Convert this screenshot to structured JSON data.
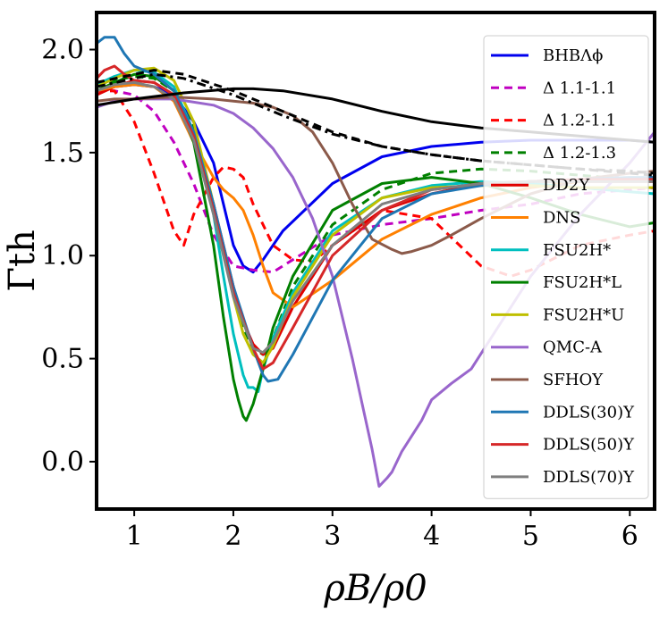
{
  "chart_data": {
    "type": "line",
    "title": "",
    "xlabel": "ρB/ρ0",
    "ylabel": "Γth",
    "xlim": [
      0.62,
      6.25
    ],
    "ylim": [
      -0.23,
      2.18
    ],
    "xticks": [
      "1",
      "2",
      "3",
      "4",
      "5",
      "6"
    ],
    "xtick_values": [
      1,
      2,
      3,
      4,
      5,
      6
    ],
    "yticks": [
      "0.0",
      "0.5",
      "1.0",
      "1.5",
      "2.0"
    ],
    "ytick_values": [
      0.0,
      0.5,
      1.0,
      1.5,
      2.0
    ],
    "grid": false,
    "legend_position": "right",
    "series": [
      {
        "name": "BHBΛϕ",
        "color": "#0000ee",
        "dash": "solid",
        "x": [
          0.62,
          0.8,
          1.0,
          1.2,
          1.4,
          1.6,
          1.8,
          1.9,
          2.0,
          2.1,
          2.2,
          2.3,
          2.5,
          3.0,
          3.5,
          4.0,
          4.5,
          5.0,
          5.5,
          6.0,
          6.25
        ],
        "y": [
          1.8,
          1.82,
          1.83,
          1.82,
          1.78,
          1.65,
          1.45,
          1.25,
          1.05,
          0.95,
          0.92,
          0.98,
          1.12,
          1.35,
          1.48,
          1.53,
          1.55,
          1.56,
          1.56,
          1.56,
          1.55
        ]
      },
      {
        "name": "Δ 1.1-1.1",
        "color": "#c000c0",
        "dash": "dashed",
        "x": [
          0.62,
          0.8,
          1.0,
          1.2,
          1.4,
          1.6,
          1.8,
          2.0,
          2.2,
          2.4,
          2.6,
          3.0,
          3.5,
          4.0,
          4.5,
          5.0,
          5.5,
          6.0,
          6.25
        ],
        "y": [
          1.8,
          1.8,
          1.78,
          1.7,
          1.55,
          1.35,
          1.1,
          0.95,
          0.93,
          0.92,
          0.98,
          1.1,
          1.15,
          1.18,
          1.22,
          1.25,
          1.3,
          1.32,
          1.33
        ]
      },
      {
        "name": "Δ 1.2-1.1",
        "color": "#ff0000",
        "dash": "dashed",
        "x": [
          0.62,
          0.8,
          1.0,
          1.2,
          1.4,
          1.5,
          1.6,
          1.8,
          1.9,
          2.0,
          2.1,
          2.2,
          2.4,
          2.6,
          2.8,
          3.0,
          3.5,
          4.0,
          4.5,
          4.8,
          5.0,
          5.5,
          6.0,
          6.25
        ],
        "y": [
          1.8,
          1.8,
          1.65,
          1.4,
          1.12,
          1.05,
          1.2,
          1.38,
          1.43,
          1.42,
          1.38,
          1.25,
          1.05,
          0.98,
          0.97,
          1.05,
          1.22,
          1.18,
          0.95,
          0.9,
          0.93,
          1.05,
          1.1,
          1.12
        ]
      },
      {
        "name": "Δ 1.2-1.3",
        "color": "#008000",
        "dash": "dashed",
        "x": [
          0.62,
          0.8,
          1.0,
          1.2,
          1.4,
          1.6,
          1.8,
          2.0,
          2.1,
          2.2,
          2.3,
          2.4,
          2.6,
          3.0,
          3.5,
          4.0,
          4.5,
          5.0,
          5.5,
          6.0,
          6.25
        ],
        "y": [
          1.82,
          1.85,
          1.87,
          1.86,
          1.8,
          1.62,
          1.25,
          0.82,
          0.65,
          0.55,
          0.52,
          0.6,
          0.85,
          1.15,
          1.32,
          1.4,
          1.42,
          1.41,
          1.39,
          1.37,
          1.36
        ]
      },
      {
        "name": "DD2Y",
        "color": "#e00000",
        "dash": "solid",
        "x": [
          0.62,
          0.8,
          1.0,
          1.2,
          1.4,
          1.6,
          1.8,
          2.0,
          2.1,
          2.2,
          2.3,
          2.4,
          2.6,
          3.0,
          3.5,
          4.0,
          4.5,
          5.0,
          5.5,
          6.0,
          6.25
        ],
        "y": [
          1.78,
          1.82,
          1.85,
          1.84,
          1.78,
          1.6,
          1.25,
          0.85,
          0.68,
          0.57,
          0.52,
          0.55,
          0.75,
          1.05,
          1.22,
          1.3,
          1.35,
          1.36,
          1.36,
          1.36,
          1.36
        ]
      },
      {
        "name": "DNS",
        "color": "#ff8000",
        "dash": "solid",
        "x": [
          0.62,
          0.8,
          1.0,
          1.2,
          1.4,
          1.6,
          1.8,
          1.9,
          2.0,
          2.1,
          2.2,
          2.3,
          2.4,
          2.6,
          3.0,
          3.5,
          4.0,
          4.5,
          5.0,
          5.5,
          6.0,
          6.25
        ],
        "y": [
          1.8,
          1.82,
          1.83,
          1.82,
          1.75,
          1.55,
          1.38,
          1.32,
          1.28,
          1.22,
          1.1,
          0.95,
          0.82,
          0.75,
          0.88,
          1.08,
          1.2,
          1.28,
          1.33,
          1.36,
          1.37,
          1.37
        ]
      },
      {
        "name": "FSU2H*",
        "color": "#00bfbf",
        "dash": "solid",
        "x": [
          0.62,
          0.8,
          1.0,
          1.2,
          1.4,
          1.6,
          1.8,
          1.9,
          2.0,
          2.1,
          2.15,
          2.2,
          2.25,
          2.3,
          2.4,
          2.6,
          3.0,
          3.5,
          4.0,
          4.5,
          5.0,
          5.5,
          6.0,
          6.25
        ],
        "y": [
          1.83,
          1.87,
          1.9,
          1.89,
          1.82,
          1.6,
          1.2,
          0.9,
          0.62,
          0.42,
          0.36,
          0.36,
          0.34,
          0.45,
          0.6,
          0.82,
          1.12,
          1.28,
          1.34,
          1.36,
          1.35,
          1.33,
          1.31,
          1.3
        ]
      },
      {
        "name": "FSU2H*L",
        "color": "#008000",
        "dash": "solid",
        "x": [
          0.62,
          0.8,
          1.0,
          1.2,
          1.4,
          1.6,
          1.8,
          1.9,
          2.0,
          2.05,
          2.1,
          2.13,
          2.2,
          2.3,
          2.4,
          2.6,
          3.0,
          3.5,
          4.0,
          4.5,
          5.0,
          5.5,
          6.0,
          6.25
        ],
        "y": [
          1.8,
          1.84,
          1.88,
          1.87,
          1.8,
          1.55,
          1.05,
          0.7,
          0.4,
          0.3,
          0.22,
          0.2,
          0.28,
          0.45,
          0.65,
          0.9,
          1.22,
          1.35,
          1.38,
          1.35,
          1.28,
          1.2,
          1.14,
          1.16
        ]
      },
      {
        "name": "FSU2H*U",
        "color": "#bfbf00",
        "dash": "solid",
        "x": [
          0.62,
          0.8,
          1.0,
          1.2,
          1.4,
          1.6,
          1.8,
          2.0,
          2.1,
          2.2,
          2.3,
          2.4,
          2.6,
          3.0,
          3.5,
          4.0,
          4.5,
          5.0,
          5.5,
          6.0,
          6.25
        ],
        "y": [
          1.82,
          1.86,
          1.9,
          1.91,
          1.85,
          1.65,
          1.25,
          0.8,
          0.62,
          0.52,
          0.48,
          0.56,
          0.8,
          1.1,
          1.28,
          1.33,
          1.34,
          1.34,
          1.33,
          1.33,
          1.33
        ]
      },
      {
        "name": "QMC-A",
        "color": "#9966cc",
        "dash": "solid",
        "x": [
          0.62,
          0.8,
          1.0,
          1.4,
          1.8,
          2.0,
          2.2,
          2.4,
          2.6,
          2.8,
          3.0,
          3.1,
          3.2,
          3.3,
          3.4,
          3.47,
          3.55,
          3.6,
          3.7,
          3.9,
          4.0,
          4.2,
          4.4,
          4.6,
          5.0,
          5.5,
          6.0,
          6.25
        ],
        "y": [
          1.72,
          1.75,
          1.76,
          1.76,
          1.73,
          1.69,
          1.62,
          1.52,
          1.38,
          1.18,
          0.9,
          0.7,
          0.5,
          0.28,
          0.06,
          -0.12,
          -0.08,
          -0.05,
          0.05,
          0.2,
          0.3,
          0.38,
          0.45,
          0.6,
          0.9,
          1.2,
          1.45,
          1.6
        ]
      },
      {
        "name": "SFHOY",
        "color": "#8b5a4a",
        "dash": "solid",
        "x": [
          0.62,
          0.8,
          1.0,
          1.4,
          1.8,
          2.0,
          2.2,
          2.4,
          2.6,
          2.8,
          3.0,
          3.2,
          3.4,
          3.6,
          3.7,
          3.8,
          4.0,
          4.2,
          4.5,
          5.0,
          5.5,
          6.0,
          6.25
        ],
        "y": [
          1.75,
          1.76,
          1.76,
          1.77,
          1.76,
          1.75,
          1.74,
          1.72,
          1.68,
          1.6,
          1.45,
          1.25,
          1.08,
          1.03,
          1.01,
          1.02,
          1.05,
          1.1,
          1.18,
          1.3,
          1.37,
          1.4,
          1.41
        ]
      },
      {
        "name": "DDLS(30)Y",
        "color": "#1f77b4",
        "dash": "solid",
        "x": [
          0.62,
          0.7,
          0.8,
          0.9,
          1.0,
          1.2,
          1.4,
          1.6,
          1.8,
          2.0,
          2.2,
          2.3,
          2.35,
          2.45,
          2.6,
          3.0,
          3.5,
          4.0,
          4.5,
          5.0,
          5.5,
          6.0,
          6.25
        ],
        "y": [
          2.03,
          2.06,
          2.06,
          1.98,
          1.92,
          1.88,
          1.8,
          1.6,
          1.25,
          0.85,
          0.55,
          0.42,
          0.39,
          0.4,
          0.52,
          0.88,
          1.18,
          1.3,
          1.34,
          1.36,
          1.37,
          1.38,
          1.38
        ]
      },
      {
        "name": "DDLS(50)Y",
        "color": "#d62728",
        "dash": "solid",
        "x": [
          0.62,
          0.7,
          0.8,
          0.9,
          1.0,
          1.2,
          1.4,
          1.6,
          1.8,
          2.0,
          2.2,
          2.3,
          2.4,
          2.6,
          3.0,
          3.5,
          4.0,
          4.5,
          5.0,
          5.5,
          6.0,
          6.25
        ],
        "y": [
          1.86,
          1.9,
          1.92,
          1.88,
          1.85,
          1.84,
          1.78,
          1.58,
          1.22,
          0.82,
          0.55,
          0.45,
          0.48,
          0.65,
          1.0,
          1.22,
          1.32,
          1.35,
          1.36,
          1.37,
          1.37,
          1.37
        ]
      },
      {
        "name": "DDLS(70)Y",
        "color": "#7f7f7f",
        "dash": "solid",
        "x": [
          0.62,
          0.8,
          1.0,
          1.2,
          1.4,
          1.6,
          1.8,
          2.0,
          2.2,
          2.3,
          2.4,
          2.6,
          3.0,
          3.5,
          4.0,
          4.5,
          5.0,
          5.5,
          6.0,
          6.25
        ],
        "y": [
          1.8,
          1.83,
          1.84,
          1.82,
          1.76,
          1.56,
          1.2,
          0.8,
          0.55,
          0.53,
          0.58,
          0.78,
          1.05,
          1.25,
          1.32,
          1.35,
          1.36,
          1.36,
          1.36,
          1.36
        ]
      },
      {
        "name": "",
        "color": "#000000",
        "dash": "solid",
        "x": [
          0.62,
          1.0,
          1.5,
          2.0,
          2.2,
          2.5,
          3.0,
          3.5,
          4.0,
          4.5,
          5.0,
          5.5,
          6.0,
          6.25
        ],
        "y": [
          1.73,
          1.76,
          1.79,
          1.81,
          1.81,
          1.8,
          1.76,
          1.7,
          1.65,
          1.62,
          1.6,
          1.58,
          1.56,
          1.55
        ]
      },
      {
        "name": "",
        "color": "#000000",
        "dash": "dashed",
        "x": [
          0.62,
          1.0,
          1.2,
          1.5,
          2.0,
          2.5,
          3.0,
          3.5,
          4.0,
          4.5,
          5.0,
          5.5,
          6.0,
          6.25
        ],
        "y": [
          1.84,
          1.88,
          1.9,
          1.88,
          1.8,
          1.7,
          1.6,
          1.53,
          1.49,
          1.46,
          1.44,
          1.42,
          1.4,
          1.39
        ]
      },
      {
        "name": "",
        "color": "#000000",
        "dash": "dashdot",
        "x": [
          0.62,
          1.0,
          1.2,
          1.5,
          2.0,
          2.5,
          3.0,
          3.5,
          4.0,
          4.5,
          5.0,
          5.5,
          6.0,
          6.25
        ],
        "y": [
          1.82,
          1.86,
          1.88,
          1.86,
          1.78,
          1.68,
          1.59,
          1.53,
          1.49,
          1.46,
          1.44,
          1.42,
          1.41,
          1.4
        ]
      }
    ]
  }
}
